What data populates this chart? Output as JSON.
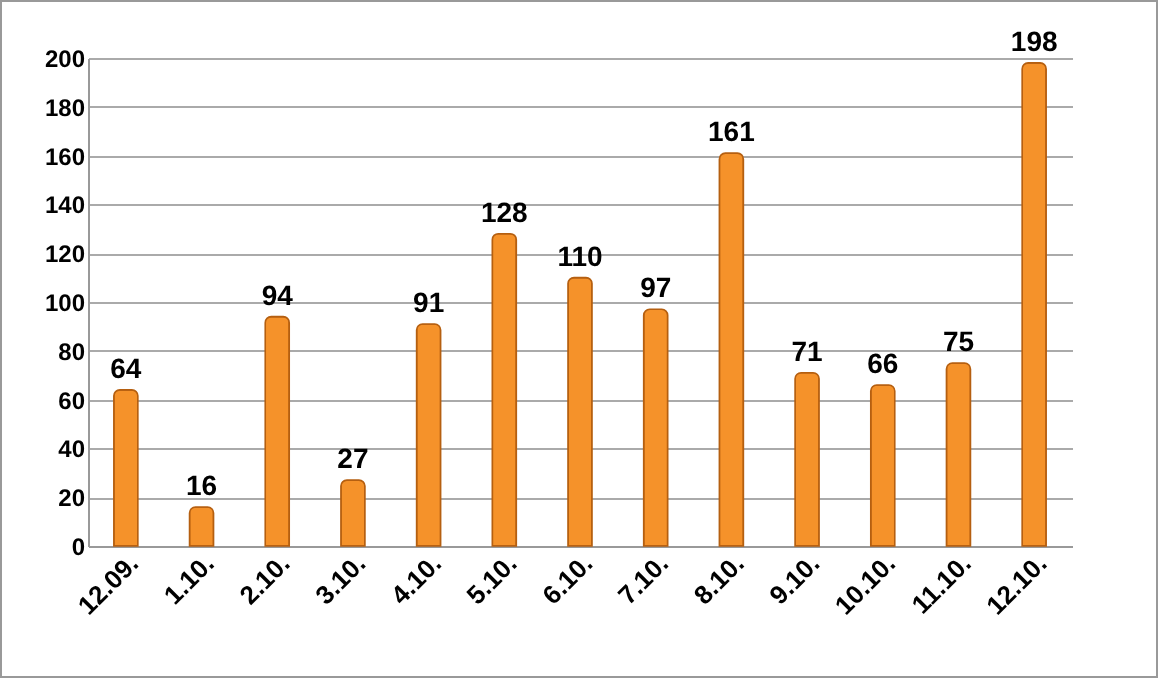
{
  "chart_data": {
    "type": "bar",
    "categories": [
      "12.09.",
      "1.10.",
      "2.10.",
      "3.10.",
      "4.10.",
      "5.10.",
      "6.10.",
      "7.10.",
      "8.10.",
      "9.10.",
      "10.10.",
      "11.10.",
      "12.10."
    ],
    "values": [
      64,
      16,
      94,
      27,
      91,
      128,
      110,
      97,
      161,
      71,
      66,
      75,
      198
    ],
    "color": "#f5922a",
    "ylim": [
      0,
      200
    ],
    "yticks": [
      0,
      20,
      40,
      60,
      80,
      100,
      120,
      140,
      160,
      180,
      200
    ],
    "grid": true,
    "data_labels": true
  }
}
